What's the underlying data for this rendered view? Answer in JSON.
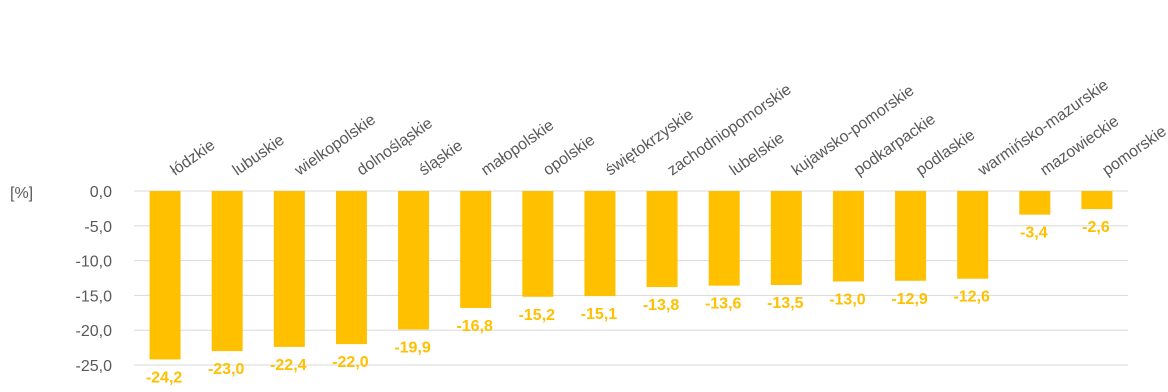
{
  "chart_data": {
    "type": "bar",
    "unit_label": "[%]",
    "categories": [
      "łódzkie",
      "lubuskie",
      "wielkopolskie",
      "dolnośląskie",
      "śląskie",
      "małopolskie",
      "opolskie",
      "świętokrzyskie",
      "zachodniopomorskie",
      "lubelskie",
      "kujawsko-pomorskie",
      "podkarpackie",
      "podlaskie",
      "warmińsko-mazurskie",
      "mazowieckie",
      "pomorskie"
    ],
    "values": [
      -24.2,
      -23.0,
      -22.4,
      -22.0,
      -19.9,
      -16.8,
      -15.2,
      -15.1,
      -13.8,
      -13.6,
      -13.5,
      -13.0,
      -12.9,
      -12.6,
      -3.4,
      -2.6
    ],
    "value_labels": [
      "-24,2",
      "-23,0",
      "-22,4",
      "-22,0",
      "-19,9",
      "-16,8",
      "-15,2",
      "-15,1",
      "-13,8",
      "-13,6",
      "-13,5",
      "-13,0",
      "-12,9",
      "-12,6",
      "-3,4",
      "-2,6"
    ],
    "yticks": [
      0,
      -5,
      -10,
      -15,
      -20,
      -25
    ],
    "ytick_labels": [
      "0,0",
      "-5,0",
      "-10,0",
      "-15,0",
      "-20,0",
      "-25,0"
    ],
    "ylim": [
      -25,
      0
    ],
    "grid": true,
    "colors": {
      "bar": "#FFC000",
      "label": "#FFC000",
      "text": "#595959",
      "grid": "#D9D9D9"
    }
  }
}
